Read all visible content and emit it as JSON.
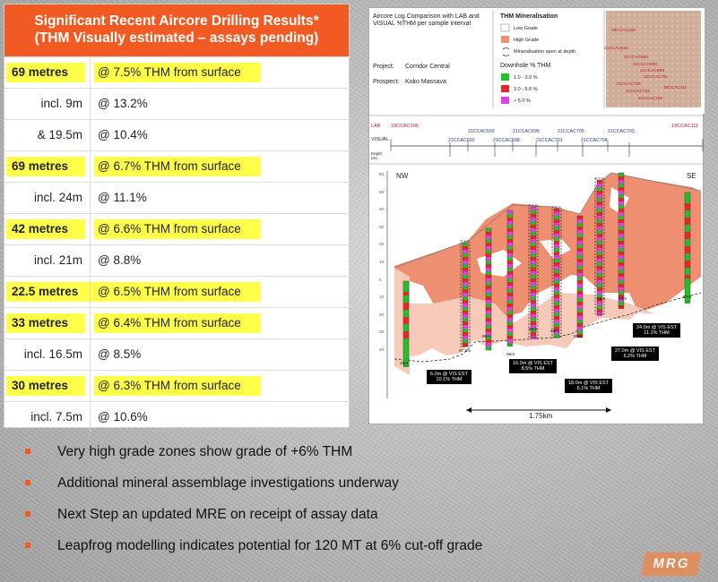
{
  "table": {
    "title_line1": "Significant Recent Aircore Drilling Results*",
    "title_line2": "(THM Visually estimated – assays pending)",
    "rows": [
      {
        "interval": "69 metres",
        "grade": "@ 7.5% THM from surface",
        "highlight": true
      },
      {
        "interval": "incl. 9m",
        "grade": "@ 13.2%",
        "highlight": false
      },
      {
        "interval": "& 19.5m",
        "grade": "@ 10.4%",
        "highlight": false
      },
      {
        "interval": "69 metres",
        "grade": "@ 6.7% THM from surface",
        "highlight": true
      },
      {
        "interval": "incl. 24m",
        "grade": "@ 11.1%",
        "highlight": false
      },
      {
        "interval": "42 metres",
        "grade": "@ 6.6% THM from surface",
        "highlight": true
      },
      {
        "interval": "incl. 21m",
        "grade": "@ 8.8%",
        "highlight": false
      },
      {
        "interval": "22.5 metres",
        "grade": "@ 6.5% THM from surface",
        "highlight": true
      },
      {
        "interval": "33 metres",
        "grade": "@ 6.4% THM from surface",
        "highlight": true
      },
      {
        "interval": "incl. 16.5m",
        "grade": "@ 8.5%",
        "highlight": false
      },
      {
        "interval": "30 metres",
        "grade": "@ 6.3% THM from surface",
        "highlight": true
      },
      {
        "interval": "incl. 7.5m",
        "grade": "@ 10.6%",
        "highlight": false
      }
    ]
  },
  "figure": {
    "title": "Aircore Log Comparison with LAB and VISUAL %THM per sample interval",
    "project_label": "Project:",
    "project_value": "Corridor Central",
    "prospect_label": "Prospect:",
    "prospect_value": "Koko Massava",
    "legend_title": "THM Mineralisation",
    "legend_low": "Low Grade",
    "legend_high": "High Grade",
    "legend_open": "Mineralisation open at depth",
    "downhole_title": "Downhole % THM",
    "dh_1": "1.0 - 3.0 %",
    "dh_2": "3.0 - 5.0 %",
    "dh_3": "> 5.0 %",
    "map_labels": [
      "19CCAC106",
      "21CCAC692",
      "21CCAC693",
      "21CCAC698",
      "21CCAC699",
      "21CCAC701",
      "21CCAC705",
      "21CCAC704",
      "21CCAC703",
      "19CCAC111"
    ],
    "lab_label": "LAB",
    "visual_label": "VISUAL",
    "depth_label": "Depth (m)",
    "hole_top": [
      "21CCAC693",
      "21CCAC699",
      "21CCAC705",
      "21CCAC703"
    ],
    "hole_bottom": [
      "21CCAC692",
      "21CCAC698",
      "21CCAC701",
      "21CCAC704"
    ],
    "lab_left": "19CCAC106",
    "lab_right": "19CCAC111",
    "nw": "NW",
    "se": "SE",
    "depth_ticks": [
      "60",
      "50",
      "40",
      "30",
      "20",
      "10",
      "0",
      "10",
      "20",
      "30",
      "40"
    ],
    "hole_depths": [
      "45m",
      "67.5m",
      "66m",
      "66m",
      "66m",
      "69m",
      "69m",
      "69m",
      "69m",
      "57m"
    ],
    "callouts": [
      {
        "l1": "6.0m @ VIS EST",
        "l2": "10.1% THM"
      },
      {
        "l1": "16.0m @ VIS EST",
        "l2": "8.5% THM"
      },
      {
        "l1": "18.0m @ VIS EST",
        "l2": "6.1% THM"
      },
      {
        "l1": "27.0m @ VIS EST",
        "l2": "6.2% THM"
      },
      {
        "l1": "24.0m @ VIS EST",
        "l2": "11.1% THM"
      }
    ],
    "scale": "1.75km"
  },
  "bullets": [
    "Very high grade zones show grade of +6% THM",
    "Additional mineral assemblage investigations underway",
    "Next Step an updated MRE on receipt of assay data",
    "Leapfrog modelling indicates potential for 120 MT at 6% cut-off grade"
  ],
  "logo": "MRG",
  "colors": {
    "accent": "#f15a22",
    "highlight": "#ffff4a",
    "high_grade": "#ef8f72",
    "grade_1": "#22c12a",
    "grade_2": "#e8262a",
    "grade_3": "#e040e8"
  }
}
